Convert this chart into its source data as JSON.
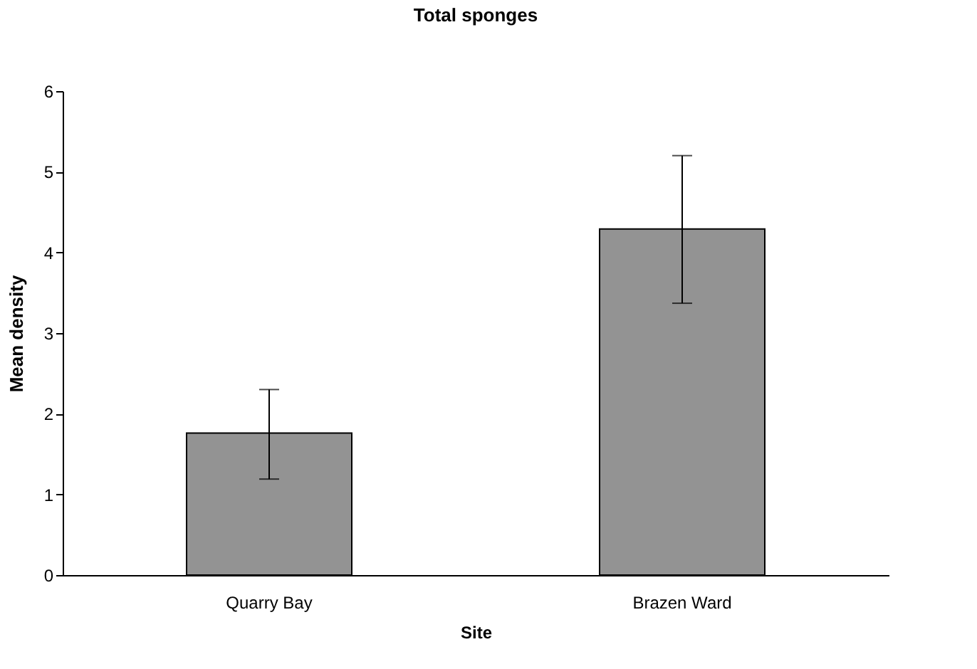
{
  "chart_data": {
    "type": "bar",
    "title": "Total sponges",
    "xlabel": "Site",
    "ylabel": "Mean density",
    "categories": [
      "Quarry Bay",
      "Brazen Ward"
    ],
    "series": [
      {
        "color": "#939393",
        "values": [
          1.76,
          4.29
        ],
        "errors": [
          [
            1.19,
            2.3
          ],
          [
            3.37,
            5.2
          ]
        ]
      }
    ],
    "ylim": [
      0,
      6
    ],
    "yticks": [
      0,
      1,
      2,
      3,
      4,
      5,
      6
    ],
    "grid": false
  }
}
